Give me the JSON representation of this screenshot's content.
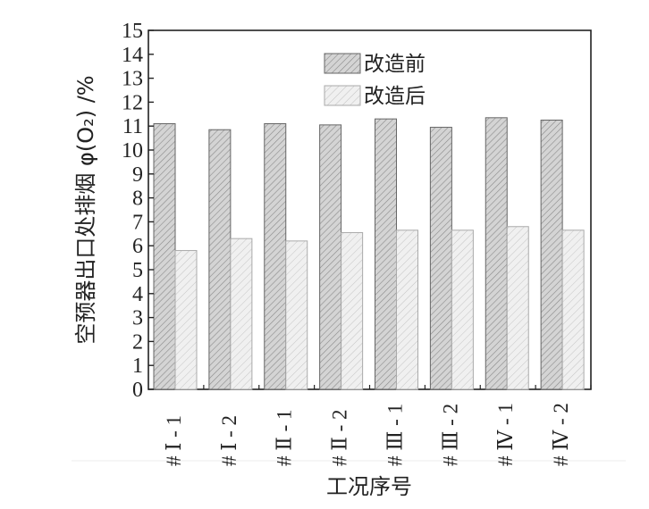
{
  "chart_data": {
    "type": "bar",
    "title": "",
    "xlabel": "工况序号",
    "ylabel": "空预器出口处排烟 φ(O₂) /%",
    "ylim": [
      0,
      15
    ],
    "yticks": [
      0,
      1,
      2,
      3,
      4,
      5,
      6,
      7,
      8,
      9,
      10,
      11,
      12,
      13,
      14,
      15
    ],
    "categories": [
      "# Ⅰ - 1",
      "# Ⅰ - 2",
      "# Ⅱ - 1",
      "# Ⅱ - 2",
      "# Ⅲ - 1",
      "# Ⅲ - 2",
      "# Ⅳ - 1",
      "# Ⅳ - 2"
    ],
    "series": [
      {
        "name": "改造前",
        "values": [
          11.1,
          10.85,
          11.1,
          11.05,
          11.3,
          10.95,
          11.35,
          11.25
        ],
        "color": "#cfcfcf",
        "hatch": "dense-diagonal"
      },
      {
        "name": "改造后",
        "values": [
          5.8,
          6.3,
          6.2,
          6.55,
          6.65,
          6.65,
          6.8,
          6.65
        ],
        "color": "#ededed",
        "hatch": "light-diagonal"
      }
    ],
    "legend": {
      "position": "top-right"
    },
    "grid": false
  }
}
